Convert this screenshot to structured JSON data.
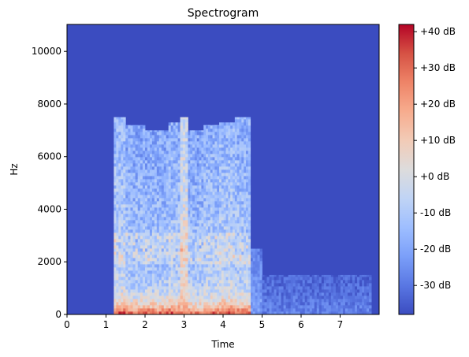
{
  "chart_data": {
    "type": "heatmap",
    "title": "Spectrogram",
    "xlabel": "Time",
    "ylabel": "Hz",
    "xlim": [
      0,
      8
    ],
    "ylim": [
      0,
      11025
    ],
    "xticks": [
      0,
      1,
      2,
      3,
      4,
      5,
      6,
      7
    ],
    "yticks": [
      0,
      2000,
      4000,
      6000,
      8000,
      10000
    ],
    "colorbar": {
      "range": [
        -38,
        42
      ],
      "ticks": [
        {
          "value": 40,
          "label": "+40 dB"
        },
        {
          "value": 30,
          "label": "+30 dB"
        },
        {
          "value": 20,
          "label": "+20 dB"
        },
        {
          "value": 10,
          "label": "+10 dB"
        },
        {
          "value": 0,
          "label": "+0 dB"
        },
        {
          "value": -10,
          "label": "-10 dB"
        },
        {
          "value": -20,
          "label": "-20 dB"
        },
        {
          "value": -30,
          "label": "-30 dB"
        }
      ],
      "colormap": [
        "#3b4cc0",
        "#5977e3",
        "#7b9ff9",
        "#9ebeff",
        "#c0d4f5",
        "#dddcdc",
        "#f2cbb7",
        "#f7ac8e",
        "#ee8468",
        "#d65244",
        "#b40426"
      ]
    },
    "background_db": -36,
    "segments": [
      {
        "t0": 1.2,
        "t1": 1.5,
        "f_top": 7500,
        "level_db": -5,
        "low_db": 35
      },
      {
        "t0": 1.5,
        "t1": 2.0,
        "f_top": 7200,
        "level_db": -10,
        "low_db": 28
      },
      {
        "t0": 2.0,
        "t1": 2.6,
        "f_top": 7000,
        "level_db": -10,
        "low_db": 30
      },
      {
        "t0": 2.6,
        "t1": 2.9,
        "f_top": 7300,
        "level_db": -8,
        "low_db": 32
      },
      {
        "t0": 2.9,
        "t1": 3.1,
        "f_top": 7500,
        "level_db": 5,
        "low_db": 28
      },
      {
        "t0": 3.1,
        "t1": 3.5,
        "f_top": 7000,
        "level_db": -10,
        "low_db": 25
      },
      {
        "t0": 3.5,
        "t1": 3.9,
        "f_top": 7200,
        "level_db": -8,
        "low_db": 30
      },
      {
        "t0": 3.9,
        "t1": 4.3,
        "f_top": 7300,
        "level_db": -6,
        "low_db": 32
      },
      {
        "t0": 4.3,
        "t1": 4.7,
        "f_top": 7500,
        "level_db": -8,
        "low_db": 30
      }
    ],
    "faint_regions": [
      {
        "t0": 4.7,
        "t1": 5.0,
        "f_top": 2500,
        "level_db": -22
      },
      {
        "t0": 5.0,
        "t1": 7.8,
        "f_top": 1500,
        "level_db": -28
      }
    ]
  }
}
